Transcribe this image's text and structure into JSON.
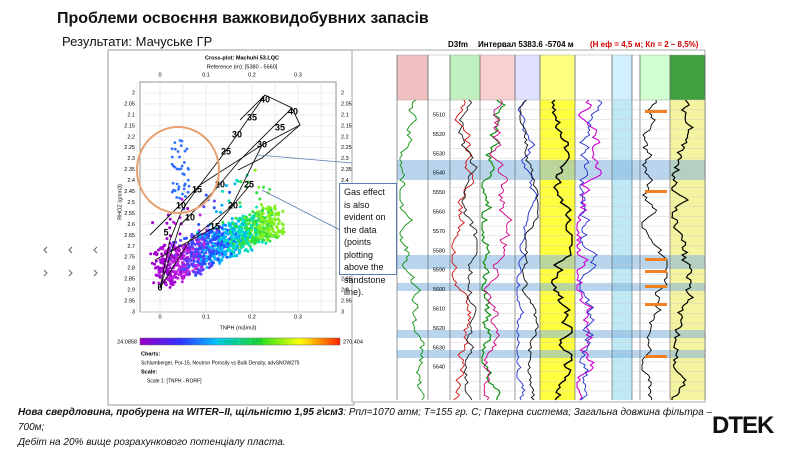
{
  "header": {
    "title": "Проблеми освоєння важковидобувних запасів",
    "subtitle": "Результати: Мачуське ГР"
  },
  "crossplot": {
    "title": "Cross-plot: Machuhi 53.LQC",
    "reference": "Reference (m): [5380 - 5660]",
    "x_label": "TNPH (m3/m3)",
    "y_label": "RHOZ (g/cm3)",
    "x_ticks": [
      "0",
      "0.1",
      "0.2",
      "0.3"
    ],
    "y_ticks": [
      "2",
      "2.05",
      "2.1",
      "2.15",
      "2.2",
      "2.25",
      "2.3",
      "2.35",
      "2.4",
      "2.45",
      "2.5",
      "2.55",
      "2.6",
      "2.65",
      "2.7",
      "2.75",
      "2.8",
      "2.85",
      "2.9",
      "2.95",
      "3"
    ],
    "overlay_labels": [
      "40",
      "40",
      "35",
      "35",
      "30",
      "30",
      "25",
      "25",
      "20",
      "20",
      "15",
      "15",
      "10",
      "10",
      "5",
      "0"
    ],
    "colorbar_min": "24.0858",
    "colorbar_max": "270.404",
    "colorbar_label": "Unknown (GR_IMP)",
    "charts_heading": "Charts:",
    "chart_ref": "Schlumberger, Por-15, Neutron Porosity vs Bulk Density, advSNOW275",
    "scale_heading": "Scale:",
    "scale_ref": "Scale 1: [TNPH - RORF]"
  },
  "callout": {
    "text": "Gas effect is also evident on the data (points plotting above the sandstone line)."
  },
  "log_panel": {
    "formation": "D3fm",
    "interval": "Интервал 5383.6 -5704 м",
    "params": "(Н еф = 4,5 м; Кп = 2 – 8,5%)",
    "depths": [
      "5510",
      "5520",
      "5530",
      "5540",
      "5550",
      "5560",
      "5570",
      "5580",
      "5590",
      "5600",
      "5610",
      "5620",
      "5630",
      "5640"
    ]
  },
  "footer": {
    "bold": "Нова свердловина, пробурена на WITER–II, щільністю 1,95 г\\см3",
    "rest": ": Рпл=1070 атм; Т=155 гр. С; Пакерна система; Загальна довжина фільтра – 700м;",
    "line2": "Дебіт на 20% вище розрахункового потенціалу пласта."
  },
  "logo": "DTEK"
}
